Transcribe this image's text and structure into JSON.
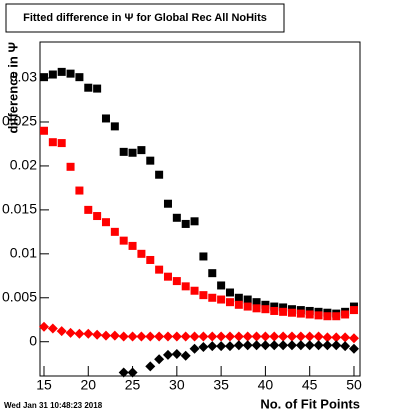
{
  "chart_data": {
    "type": "scatter",
    "title": "Fitted difference in  Ψ  for Global Rec All NoHits",
    "x_label": "No. of Fit Points",
    "y_label": "difference in  Ψ",
    "annotation": "Wed Jan 31 10:48:23 2018",
    "xlim": [
      14.55,
      50.68
    ],
    "ylim": [
      -0.0039,
      0.0341
    ],
    "xticks": [
      15,
      20,
      25,
      30,
      35,
      40,
      45,
      50
    ],
    "yticks": [
      0,
      0.005,
      0.01,
      0.015,
      0.02,
      0.025,
      0.03
    ],
    "grid": false,
    "x": [
      15,
      16,
      17,
      18,
      19,
      20,
      21,
      22,
      23,
      24,
      25,
      26,
      27,
      28,
      29,
      30,
      31,
      32,
      33,
      34,
      35,
      36,
      37,
      38,
      39,
      40,
      41,
      42,
      43,
      44,
      45,
      46,
      47,
      48,
      49,
      50
    ],
    "series": [
      {
        "color": "#000000",
        "marker": "square",
        "values": [
          0.0301,
          0.0304,
          0.0307,
          0.0305,
          0.0301,
          0.0289,
          0.0288,
          0.0254,
          0.0245,
          0.0216,
          0.0215,
          0.0218,
          0.0206,
          0.019,
          0.0157,
          0.0141,
          0.0134,
          0.0137,
          0.0097,
          0.0078,
          0.0064,
          0.0056,
          0.005,
          0.0048,
          0.0045,
          0.0042,
          0.004,
          0.0039,
          0.0037,
          0.0036,
          0.0035,
          0.0034,
          0.0033,
          0.0032,
          0.0034,
          0.004
        ]
      },
      {
        "color": "#ff0000",
        "marker": "square",
        "values": [
          0.024,
          0.0227,
          0.0226,
          0.0199,
          0.0172,
          0.015,
          0.0143,
          0.0136,
          0.0125,
          0.0115,
          0.0109,
          0.01,
          0.0093,
          0.0082,
          0.0074,
          0.0069,
          0.0063,
          0.0058,
          0.0053,
          0.005,
          0.0048,
          0.0045,
          0.0042,
          0.004,
          0.0038,
          0.0037,
          0.0035,
          0.0034,
          0.0033,
          0.0032,
          0.0031,
          0.003,
          0.0029,
          0.0029,
          0.0031,
          0.0036
        ]
      },
      {
        "color": "#ff0000",
        "marker": "diamond",
        "values": [
          0.0017,
          0.0015,
          0.0012,
          0.001,
          0.0009,
          0.0009,
          0.0008,
          0.0007,
          0.0007,
          0.0006,
          0.0006,
          0.0006,
          0.0006,
          0.0006,
          0.0006,
          0.0006,
          0.0006,
          0.0006,
          0.0006,
          0.0006,
          0.0006,
          0.0006,
          0.0006,
          0.0006,
          0.0006,
          0.0006,
          0.0006,
          0.0006,
          0.0006,
          0.0006,
          0.0006,
          0.0006,
          0.0005,
          0.0005,
          0.0005,
          0.0004
        ]
      },
      {
        "color": "#000000",
        "marker": "diamond",
        "values": [
          null,
          null,
          null,
          null,
          null,
          null,
          null,
          null,
          null,
          -0.0035,
          -0.0035,
          null,
          -0.0028,
          -0.002,
          -0.0015,
          -0.0014,
          -0.0016,
          -0.0008,
          -0.0006,
          -0.0005,
          -0.0005,
          -0.0005,
          -0.0004,
          -0.0004,
          -0.0004,
          -0.0004,
          -0.0004,
          -0.0004,
          -0.0004,
          -0.0004,
          -0.0004,
          -0.0004,
          -0.0004,
          -0.0004,
          -0.0005,
          -0.0008
        ]
      }
    ]
  }
}
